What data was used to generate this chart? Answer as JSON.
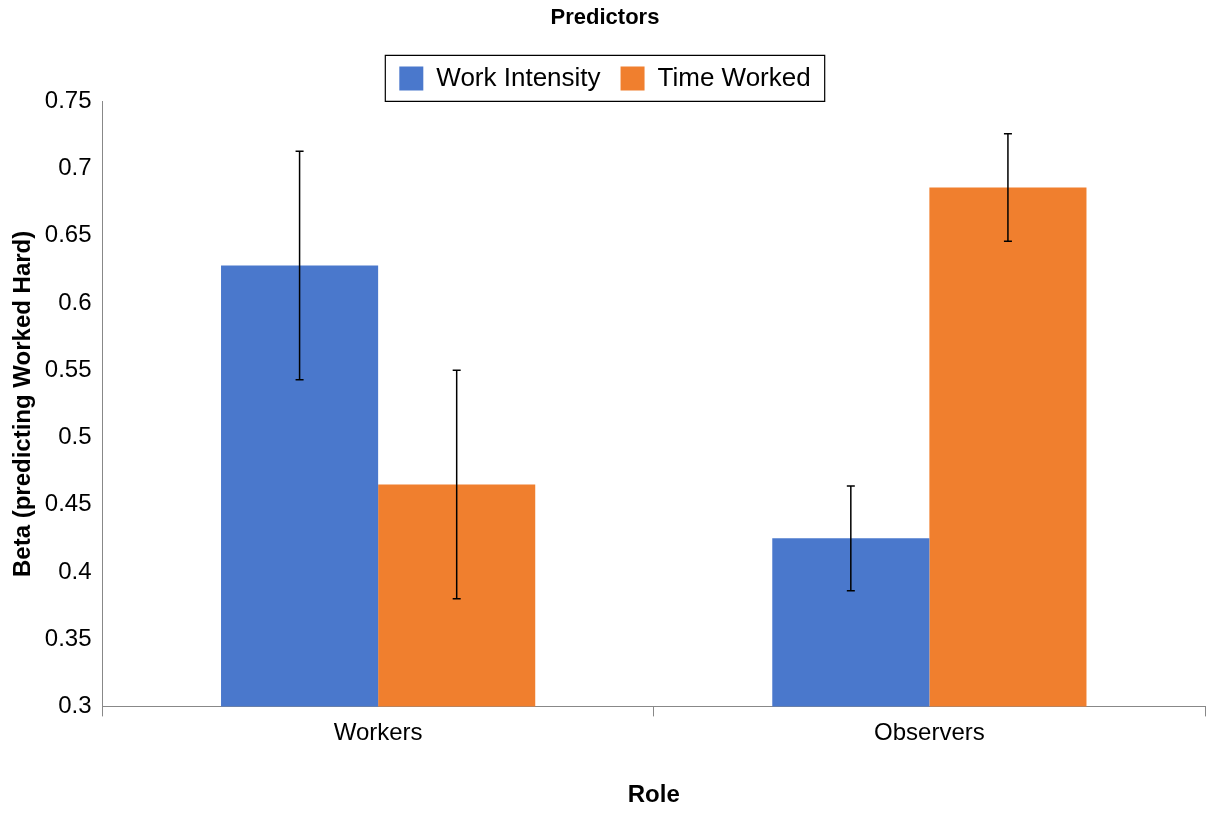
{
  "chart_data": {
    "type": "bar",
    "title": "Predictors",
    "xlabel": "Role",
    "ylabel": "Beta (predicting Worked Hard)",
    "categories": [
      "Workers",
      "Observers"
    ],
    "series": [
      {
        "name": "Work Intensity",
        "color": "#4a78cc",
        "values": [
          0.628,
          0.425
        ],
        "errors": [
          0.085,
          0.039
        ]
      },
      {
        "name": "Time Worked",
        "color": "#f07f2e",
        "values": [
          0.465,
          0.686
        ],
        "errors": [
          0.085,
          0.04
        ]
      }
    ],
    "ylim": [
      0.3,
      0.75
    ],
    "yticks": [
      0.3,
      0.35,
      0.4,
      0.45,
      0.5,
      0.55,
      0.6,
      0.65,
      0.7,
      0.75
    ],
    "grid": false,
    "legend": "top"
  }
}
